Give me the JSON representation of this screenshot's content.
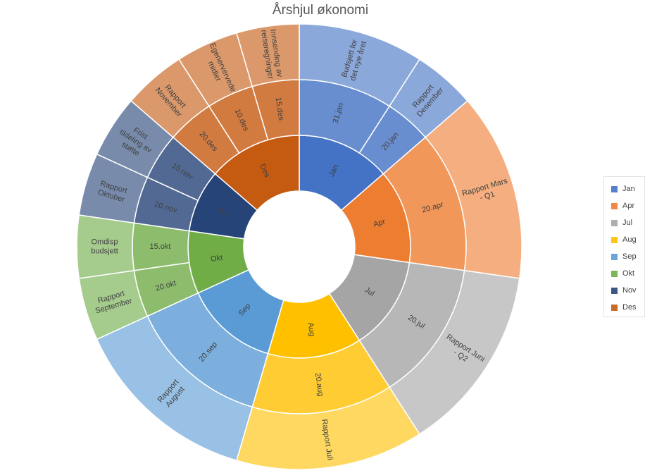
{
  "chart_data": {
    "type": "sunburst",
    "title": "Årshjul økonomi",
    "start_angle_deg": 0,
    "direction": "clockwise",
    "legend_position": "right",
    "inner_hole_ratio": 0.25,
    "series": [
      {
        "name": "Jan",
        "color": "#4472C4",
        "value": 3,
        "children": [
          {
            "name": "31.jan",
            "value": 2,
            "children": [
              {
                "name": "Budsjett for det nye året",
                "value": 2
              }
            ]
          },
          {
            "name": "20.jan",
            "value": 1,
            "children": [
              {
                "name": "Rapport Desember",
                "value": 1
              }
            ]
          }
        ]
      },
      {
        "name": "Apr",
        "color": "#ED7D31",
        "value": 3,
        "children": [
          {
            "name": "20.apr",
            "value": 3,
            "children": [
              {
                "name": "Rapport Mars - Q1",
                "value": 3
              }
            ]
          }
        ]
      },
      {
        "name": "Jul",
        "color": "#A5A5A5",
        "value": 3,
        "children": [
          {
            "name": "20.jul",
            "value": 3,
            "children": [
              {
                "name": "Rapport Juni - Q2",
                "value": 3
              }
            ]
          }
        ]
      },
      {
        "name": "Aug",
        "color": "#FFC000",
        "value": 3,
        "children": [
          {
            "name": "20.aug",
            "value": 3,
            "children": [
              {
                "name": "Rapport Juli",
                "value": 3
              }
            ]
          }
        ]
      },
      {
        "name": "Sep",
        "color": "#5B9BD5",
        "value": 3,
        "children": [
          {
            "name": "20.sep",
            "value": 3,
            "children": [
              {
                "name": "Rapport August",
                "value": 3
              }
            ]
          }
        ]
      },
      {
        "name": "Okt",
        "color": "#70AD47",
        "value": 2,
        "children": [
          {
            "name": "20.okt",
            "value": 1,
            "children": [
              {
                "name": "Rapport September",
                "value": 1
              }
            ]
          },
          {
            "name": "15.okt",
            "value": 1,
            "children": [
              {
                "name": "Omdisp budsjett",
                "value": 1
              }
            ]
          }
        ]
      },
      {
        "name": "Nov",
        "color": "#264478",
        "value": 2,
        "children": [
          {
            "name": "20.nov",
            "value": 1,
            "children": [
              {
                "name": "Rapport Oktober",
                "value": 1
              }
            ]
          },
          {
            "name": "15.nov",
            "value": 1,
            "children": [
              {
                "name": "Frist tildeling av støtte",
                "value": 1
              }
            ]
          }
        ]
      },
      {
        "name": "Des",
        "color": "#C55A11",
        "value": 3,
        "children": [
          {
            "name": "20.des",
            "value": 1,
            "children": [
              {
                "name": "Rapport November",
                "value": 1
              }
            ]
          },
          {
            "name": "10.des",
            "value": 1,
            "children": [
              {
                "name": "Egenervervede midler",
                "value": 1
              }
            ]
          },
          {
            "name": "15.des",
            "value": 1,
            "children": [
              {
                "name": "Innsending av reiseregninger",
                "value": 1
              }
            ]
          }
        ]
      }
    ],
    "legend": [
      "Jan",
      "Apr",
      "Jul",
      "Aug",
      "Sep",
      "Okt",
      "Nov",
      "Des"
    ]
  }
}
